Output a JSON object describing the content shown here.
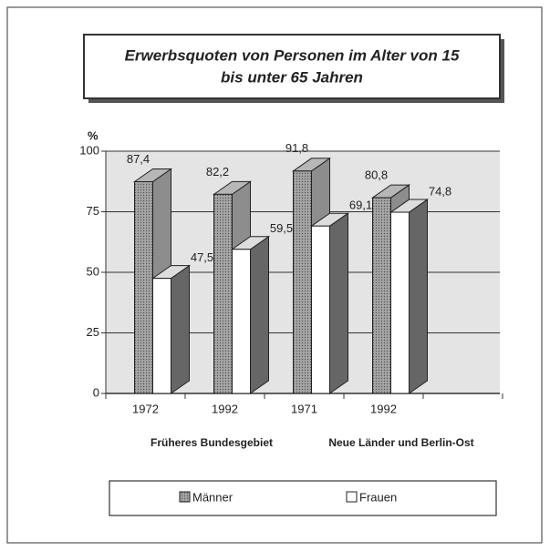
{
  "chart_data": {
    "type": "bar3d",
    "title": "Erwerbsquoten von Personen im Alter von 15 bis unter 65 Jahren",
    "y_label": "%",
    "categories": [
      "1972",
      "1992",
      "1971",
      "1992"
    ],
    "groups": [
      "Früheres Bundesgebiet",
      "Neue Länder und Berlin-Ost"
    ],
    "series": [
      {
        "name": "Männer",
        "color": "#a6a6a6",
        "values": [
          87.4,
          82.2,
          91.8,
          80.8
        ],
        "value_labels": [
          "87,4",
          "82,2",
          "91,8",
          "80,8"
        ]
      },
      {
        "name": "Frauen",
        "color": "#ffffff",
        "values": [
          47.5,
          59.5,
          69.1,
          74.8
        ],
        "value_labels": [
          "47,5",
          "59,5",
          "69,1",
          "74,8"
        ]
      }
    ],
    "ylim": [
      0,
      100
    ],
    "yticks": [
      0,
      25,
      50,
      75,
      100
    ],
    "grid": true
  }
}
